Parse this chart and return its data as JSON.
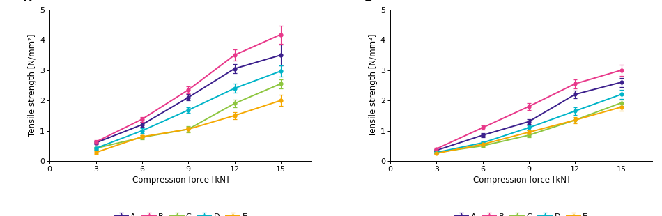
{
  "x": [
    3,
    6,
    9,
    12,
    15
  ],
  "panel_A": {
    "label": "A",
    "series": {
      "A": {
        "y": [
          0.6,
          1.2,
          2.1,
          3.05,
          3.5
        ],
        "yerr": [
          0.05,
          0.08,
          0.1,
          0.15,
          0.35
        ]
      },
      "B": {
        "y": [
          0.63,
          1.38,
          2.35,
          3.5,
          4.18
        ],
        "yerr": [
          0.05,
          0.08,
          0.12,
          0.18,
          0.3
        ]
      },
      "C": {
        "y": [
          0.42,
          0.78,
          1.05,
          1.9,
          2.55
        ],
        "yerr": [
          0.05,
          0.06,
          0.1,
          0.12,
          0.15
        ]
      },
      "D": {
        "y": [
          0.42,
          1.0,
          1.68,
          2.4,
          2.97
        ],
        "yerr": [
          0.05,
          0.08,
          0.1,
          0.15,
          0.18
        ]
      },
      "E": {
        "y": [
          0.28,
          0.8,
          1.05,
          1.5,
          2.0
        ],
        "yerr": [
          0.05,
          0.06,
          0.08,
          0.12,
          0.18
        ]
      }
    }
  },
  "panel_B": {
    "label": "B",
    "series": {
      "A": {
        "y": [
          0.35,
          0.85,
          1.3,
          2.2,
          2.6
        ],
        "yerr": [
          0.03,
          0.06,
          0.08,
          0.12,
          0.15
        ]
      },
      "B": {
        "y": [
          0.4,
          1.1,
          1.8,
          2.55,
          3.0
        ],
        "yerr": [
          0.04,
          0.07,
          0.12,
          0.15,
          0.18
        ]
      },
      "C": {
        "y": [
          0.28,
          0.5,
          0.85,
          1.35,
          1.92
        ],
        "yerr": [
          0.03,
          0.04,
          0.06,
          0.08,
          0.1
        ]
      },
      "D": {
        "y": [
          0.28,
          0.6,
          1.1,
          1.65,
          2.2
        ],
        "yerr": [
          0.03,
          0.05,
          0.08,
          0.12,
          0.15
        ]
      },
      "E": {
        "y": [
          0.25,
          0.55,
          0.95,
          1.35,
          1.78
        ],
        "yerr": [
          0.03,
          0.04,
          0.06,
          0.1,
          0.12
        ]
      }
    }
  },
  "colors": {
    "A": "#3b1f8c",
    "B": "#e8388a",
    "C": "#8dc63f",
    "D": "#00b4c8",
    "E": "#f5a800"
  },
  "xlabel": "Compression force [kN]",
  "ylabel": "Tensile strength [N/mm²]",
  "ylim": [
    0,
    5
  ],
  "yticks": [
    0,
    1,
    2,
    3,
    4,
    5
  ],
  "xlim": [
    0,
    17
  ],
  "xticks": [
    0,
    3,
    6,
    9,
    12,
    15
  ],
  "marker": "o",
  "markersize": 3.5,
  "linewidth": 1.4,
  "capsize": 2.0,
  "legend_order": [
    "A",
    "B",
    "C",
    "D",
    "E"
  ],
  "bg_color": "#ffffff"
}
